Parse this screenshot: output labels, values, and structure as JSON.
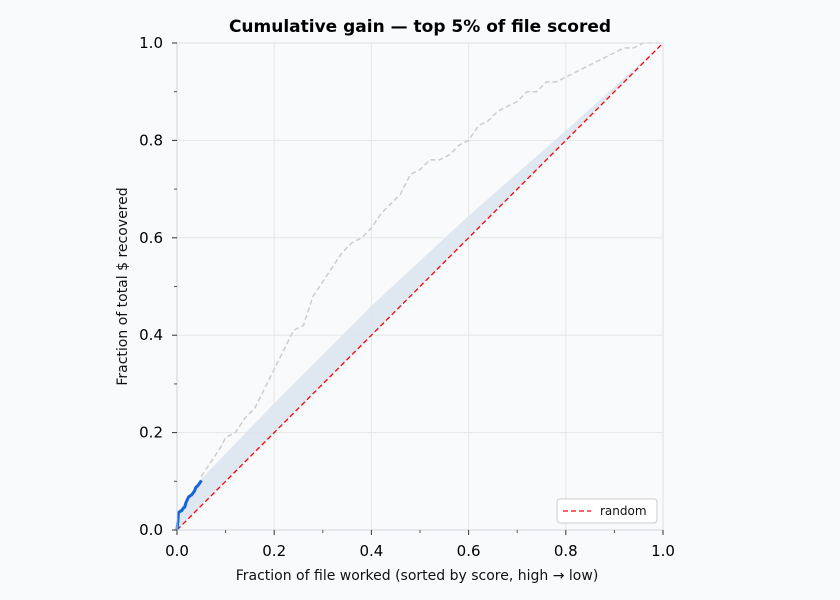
{
  "chart_data": {
    "type": "line",
    "title": "Cumulative gain — top 5% of file scored",
    "xlabel": "Fraction of file worked (sorted by score, high → low)",
    "ylabel": "Fraction of total $ recovered",
    "xlim": [
      0,
      1
    ],
    "ylim": [
      0,
      1
    ],
    "x_ticks": [
      0.0,
      0.2,
      0.4,
      0.6,
      0.8,
      1.0
    ],
    "y_ticks": [
      0.0,
      0.2,
      0.4,
      0.6,
      0.8,
      1.0
    ],
    "x_tick_labels": [
      "0.0",
      "0.2",
      "0.4",
      "0.6",
      "0.8",
      "1.0"
    ],
    "y_tick_labels": [
      "0.0",
      "0.2",
      "0.4",
      "0.6",
      "0.8",
      "1.0"
    ],
    "grid": true,
    "legend": {
      "position": "bottom-right",
      "entries": [
        "random"
      ]
    },
    "colors": {
      "scored": "#1565d8",
      "full_curve": "#cccccc",
      "random": "#ff0000",
      "band": "#dbe4f0",
      "background": "#f8fafc"
    },
    "series": [
      {
        "name": "random",
        "style": "dashed",
        "x": [
          0,
          1
        ],
        "y": [
          0,
          1
        ]
      },
      {
        "style": "solid",
        "x": [
          0.0,
          0.002,
          0.003,
          0.006,
          0.01,
          0.013,
          0.016,
          0.018,
          0.021,
          0.024,
          0.027,
          0.03,
          0.033,
          0.036,
          0.039,
          0.042,
          0.045,
          0.048,
          0.05
        ],
        "y": [
          0.0,
          0.02,
          0.035,
          0.038,
          0.04,
          0.045,
          0.047,
          0.055,
          0.062,
          0.068,
          0.07,
          0.072,
          0.076,
          0.08,
          0.088,
          0.09,
          0.094,
          0.098,
          0.102
        ]
      },
      {
        "style": "dashed",
        "x": [
          0.05,
          0.07,
          0.09,
          0.1,
          0.12,
          0.14,
          0.16,
          0.18,
          0.2,
          0.22,
          0.24,
          0.26,
          0.27,
          0.28,
          0.3,
          0.32,
          0.34,
          0.36,
          0.38,
          0.4,
          0.42,
          0.44,
          0.46,
          0.48,
          0.5,
          0.52,
          0.54,
          0.56,
          0.58,
          0.6,
          0.62,
          0.64,
          0.66,
          0.68,
          0.7,
          0.72,
          0.74,
          0.76,
          0.78,
          0.8,
          0.82,
          0.84,
          0.86,
          0.88,
          0.9,
          0.92,
          0.94,
          0.96,
          0.98,
          1.0
        ],
        "y": [
          0.11,
          0.14,
          0.17,
          0.19,
          0.2,
          0.23,
          0.25,
          0.29,
          0.33,
          0.37,
          0.41,
          0.42,
          0.45,
          0.48,
          0.51,
          0.54,
          0.57,
          0.59,
          0.6,
          0.62,
          0.65,
          0.67,
          0.69,
          0.73,
          0.74,
          0.76,
          0.76,
          0.77,
          0.79,
          0.8,
          0.83,
          0.84,
          0.86,
          0.87,
          0.88,
          0.9,
          0.9,
          0.92,
          0.92,
          0.93,
          0.94,
          0.95,
          0.96,
          0.97,
          0.98,
          0.99,
          0.99,
          1.0,
          1.0,
          1.0
        ]
      }
    ],
    "band": {
      "x": [
        0.0,
        0.05,
        0.2,
        0.4,
        0.6,
        0.8,
        1.0
      ],
      "y_low": [
        0.0,
        0.05,
        0.2,
        0.4,
        0.6,
        0.8,
        1.0
      ],
      "y_high": [
        0.035,
        0.105,
        0.26,
        0.46,
        0.645,
        0.82,
        1.0
      ]
    }
  }
}
